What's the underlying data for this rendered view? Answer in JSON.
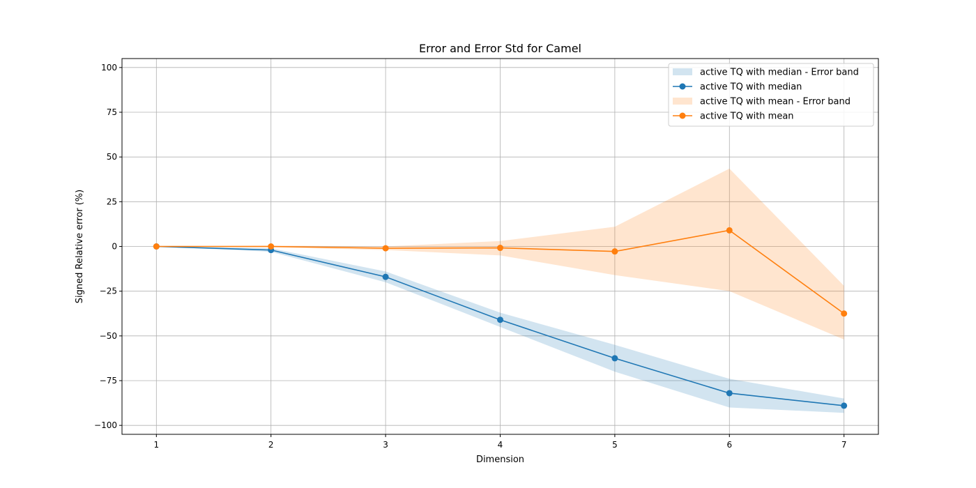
{
  "chart_data": {
    "type": "line",
    "title": "Error and Error Std for Camel",
    "xlabel": "Dimension",
    "ylabel": "Signed Relative error (%)",
    "x": [
      1,
      2,
      3,
      4,
      5,
      6,
      7
    ],
    "xlim": [
      0.7,
      7.3
    ],
    "ylim": [
      -105,
      105
    ],
    "xticks": [
      1,
      2,
      3,
      4,
      5,
      6,
      7
    ],
    "yticks": [
      -100,
      -75,
      -50,
      -25,
      0,
      25,
      50,
      75,
      100
    ],
    "grid": true,
    "legend_position": "top-right",
    "series": [
      {
        "name": "active TQ with median",
        "color": "#1f77b4",
        "values": [
          0,
          -2,
          -17,
          -41,
          -62.5,
          -82,
          -89
        ],
        "band_name": "active TQ with median - Error band",
        "band_color": "#1f77b4",
        "band_lower": [
          0,
          -3,
          -20,
          -45,
          -70,
          -90,
          -93
        ],
        "band_upper": [
          0,
          -1,
          -14,
          -37,
          -55,
          -74,
          -85
        ]
      },
      {
        "name": "active TQ with mean",
        "color": "#ff7f0e",
        "values": [
          0,
          0,
          -1,
          -0.8,
          -2.8,
          9,
          -37.5
        ],
        "band_name": "active TQ with mean - Error band",
        "band_color": "#ff7f0e",
        "band_lower": [
          0,
          -0.5,
          -2,
          -5,
          -16,
          -25,
          -52
        ],
        "band_upper": [
          0,
          0.5,
          0,
          3,
          11,
          43.5,
          -22
        ]
      }
    ]
  }
}
